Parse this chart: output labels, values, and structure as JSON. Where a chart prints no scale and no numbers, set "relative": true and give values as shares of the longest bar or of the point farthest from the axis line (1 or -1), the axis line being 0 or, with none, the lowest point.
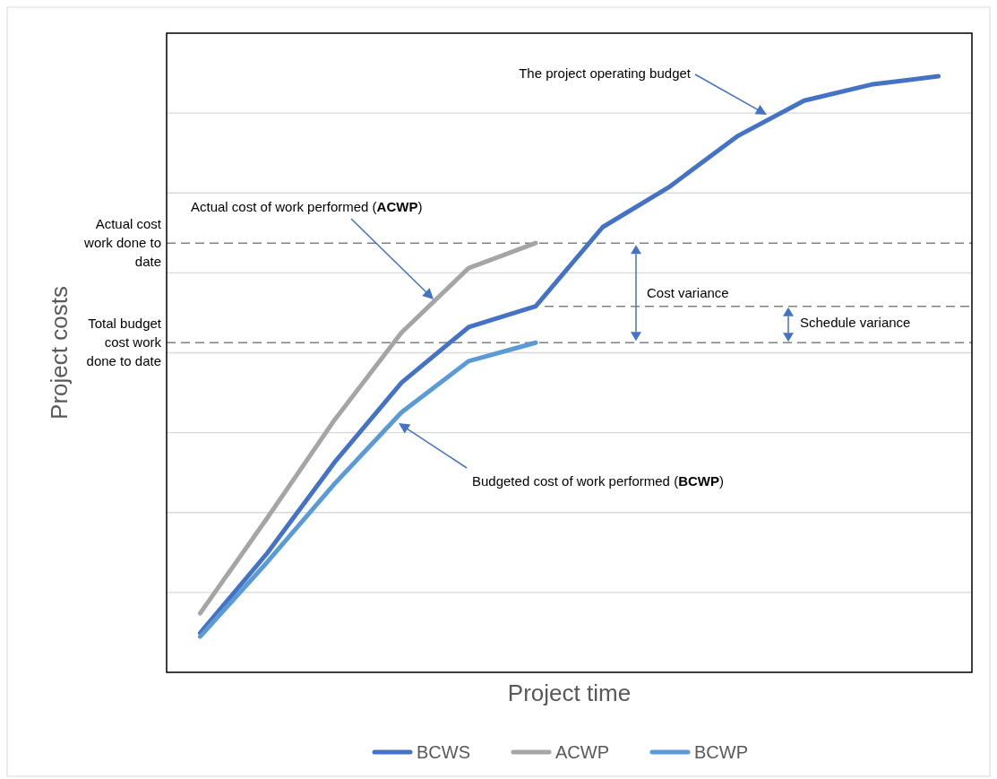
{
  "chart_data": {
    "type": "line",
    "relative": true,
    "xlabel": "Project time",
    "ylabel": "Project costs",
    "categories": [
      null,
      null,
      null,
      null,
      null,
      null,
      null,
      null,
      null,
      null,
      null,
      null
    ],
    "series": [
      {
        "name": "BCWS",
        "color": "#4472c4",
        "values": [
          0.066,
          0.2,
          0.352,
          0.486,
          0.579,
          0.614,
          0.747,
          0.815,
          0.899,
          0.959,
          0.986,
          1
        ]
      },
      {
        "name": "ACWP",
        "color": "#a5a5a5",
        "values": [
          0.099,
          0.259,
          0.423,
          0.57,
          0.678,
          0.72,
          null,
          null,
          null,
          null,
          null,
          null
        ]
      },
      {
        "name": "BCWP",
        "color": "#5b9bd5",
        "values": [
          0.06,
          0.185,
          0.316,
          0.436,
          0.522,
          0.553,
          null,
          null,
          null,
          null,
          null,
          null
        ]
      }
    ],
    "ref_lines": [
      {
        "axis": "y",
        "value": 0.72,
        "label": "Actual cost work done to date",
        "color": "#808080",
        "line_style": "dashed"
      },
      {
        "axis": "y",
        "value": 0.614,
        "label": null,
        "color": "#808080",
        "line_style": "dashed"
      },
      {
        "axis": "y",
        "value": 0.553,
        "label": "Total budget cost work done to date",
        "color": "#808080",
        "line_style": "dashed"
      }
    ],
    "annotations": [
      "The project operating budget",
      "Actual cost of work performed (ACWP)",
      "Budgeted cost of work performed (BCWP)",
      "Cost variance",
      "Schedule variance"
    ],
    "grid": true,
    "legend": "bottom",
    "marker": "none",
    "line_style": "solid"
  }
}
